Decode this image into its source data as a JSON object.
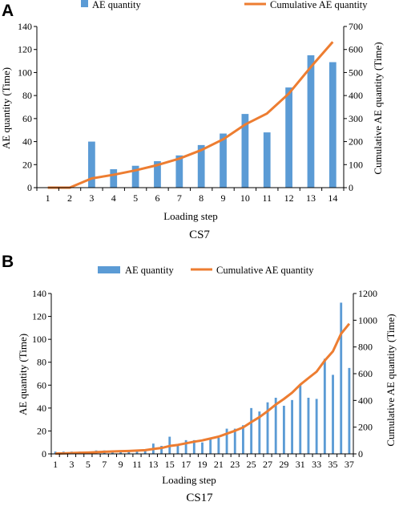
{
  "figure": {
    "colors": {
      "bar": "#5b9bd5",
      "line": "#ed7d31",
      "axis": "#000000"
    },
    "panels": [
      {
        "letter": "A",
        "caption": "CS7"
      },
      {
        "letter": "B",
        "caption": "CS17"
      }
    ]
  },
  "chart_data": [
    {
      "type": "bar",
      "title": "",
      "xlabel": "Loading step",
      "ylabel": "AE quantity (Time)",
      "y2label": "Cumulative AE quantity (Time)",
      "ylim": [
        0,
        140
      ],
      "y2lim": [
        0,
        700
      ],
      "yticks": [
        0,
        20,
        40,
        60,
        80,
        100,
        120,
        140
      ],
      "y2ticks": [
        0,
        100,
        200,
        300,
        400,
        500,
        600,
        700
      ],
      "xticks": [
        "1",
        "2",
        "3",
        "4",
        "5",
        "6",
        "7",
        "8",
        "9",
        "10",
        "11",
        "12",
        "13",
        "14"
      ],
      "categories": [
        "1",
        "2",
        "3",
        "4",
        "5",
        "6",
        "7",
        "8",
        "9",
        "10",
        "11",
        "12",
        "13",
        "14"
      ],
      "legend_position": "top",
      "grid": false,
      "series": [
        {
          "name": "AE quantity",
          "type": "bar",
          "axis": "left",
          "values": [
            0,
            0,
            40,
            16,
            19,
            23,
            28,
            37,
            47,
            64,
            48,
            87,
            115,
            109
          ]
        },
        {
          "name": "Cumulative AE quantity",
          "type": "line",
          "axis": "right",
          "values": [
            0,
            0,
            40,
            56,
            75,
            98,
            126,
            163,
            210,
            274,
            322,
            409,
            524,
            633
          ]
        }
      ]
    },
    {
      "type": "bar",
      "title": "",
      "xlabel": "Loading step",
      "ylabel": "AE quantity (Time)",
      "y2label": "Cumulative AE quantity (Time)",
      "ylim": [
        0,
        140
      ],
      "y2lim": [
        0,
        1200
      ],
      "yticks": [
        0,
        20,
        40,
        60,
        80,
        100,
        120,
        140
      ],
      "y2ticks": [
        0,
        200,
        400,
        600,
        800,
        1000,
        1200
      ],
      "xticks": [
        "1",
        "3",
        "5",
        "7",
        "9",
        "11",
        "13",
        "15",
        "17",
        "19",
        "21",
        "23",
        "25",
        "27",
        "29",
        "31",
        "33",
        "35",
        "37"
      ],
      "categories": [
        "1",
        "2",
        "3",
        "4",
        "5",
        "6",
        "7",
        "8",
        "9",
        "10",
        "11",
        "12",
        "13",
        "14",
        "15",
        "16",
        "17",
        "18",
        "19",
        "20",
        "21",
        "22",
        "23",
        "24",
        "25",
        "26",
        "27",
        "28",
        "29",
        "30",
        "31",
        "32",
        "33",
        "34",
        "35",
        "36",
        "37"
      ],
      "legend_position": "top",
      "grid": false,
      "series": [
        {
          "name": "AE quantity",
          "type": "bar",
          "axis": "left",
          "values": [
            2,
            2,
            2,
            2,
            2,
            3,
            3,
            2,
            2,
            2,
            3,
            3,
            9,
            7,
            15,
            8,
            12,
            12,
            10,
            14,
            14,
            22,
            22,
            25,
            40,
            37,
            45,
            49,
            42,
            47,
            60,
            49,
            48,
            83,
            69,
            132,
            75
          ]
        },
        {
          "name": "Cumulative AE quantity",
          "type": "line",
          "axis": "right",
          "values": [
            2,
            4,
            6,
            8,
            10,
            13,
            16,
            18,
            20,
            22,
            25,
            28,
            37,
            44,
            59,
            67,
            79,
            91,
            101,
            115,
            129,
            151,
            173,
            198,
            238,
            275,
            320,
            369,
            411,
            458,
            518,
            567,
            615,
            698,
            767,
            899,
            974
          ]
        }
      ]
    }
  ]
}
